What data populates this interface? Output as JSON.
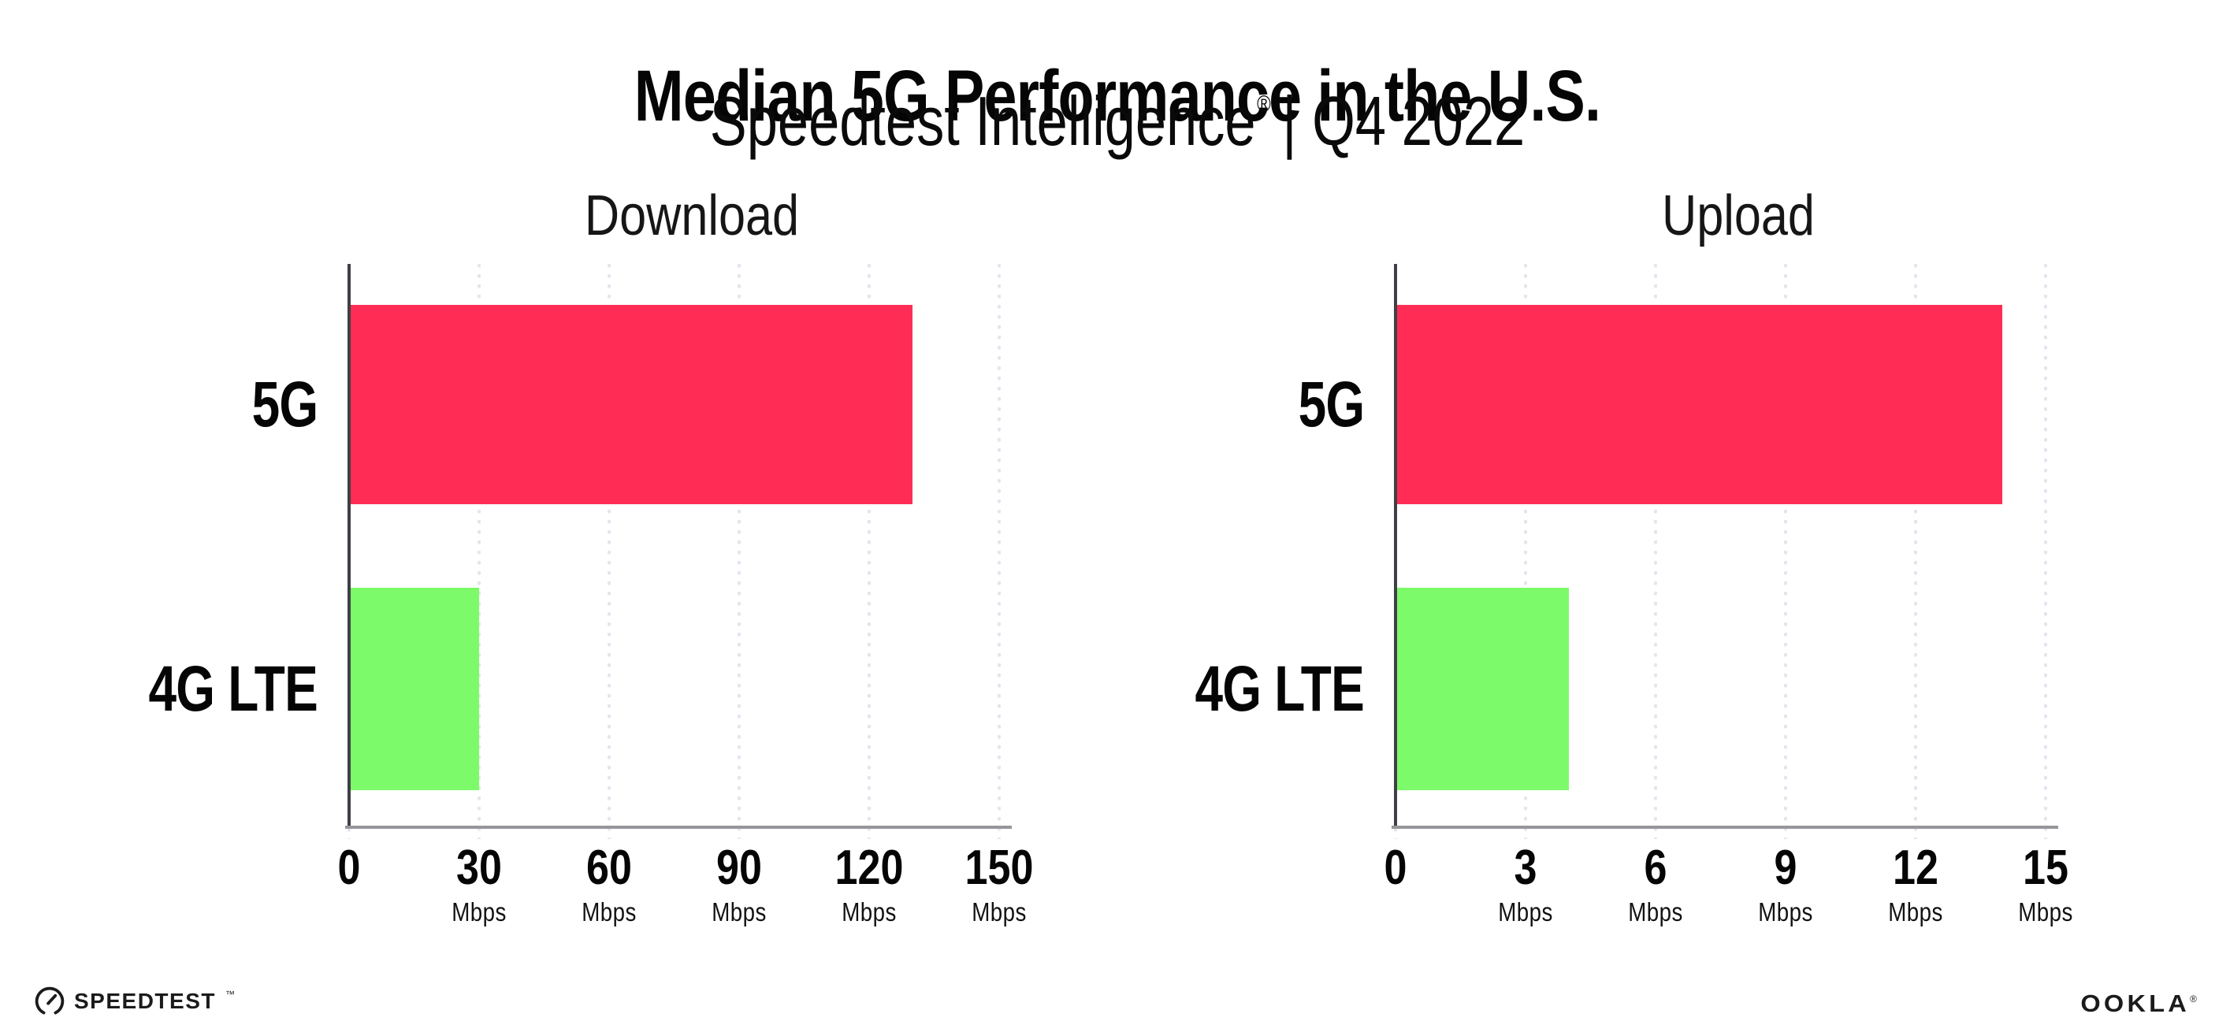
{
  "header": {
    "title": "Median 5G Performance in the U.S.",
    "subtitle_brand": "Speedtest Intelligence",
    "subtitle_reg": "®",
    "subtitle_rest": "| Q4 2022"
  },
  "colors": {
    "bar_5g": "#FF2D55",
    "bar_4g": "#7DFA69",
    "gridline": "#E5E4EF",
    "y_axis": "#3F3F46",
    "x_axis": "#96969B",
    "text": "#050505",
    "background": "#FFFFFF"
  },
  "chart_data": [
    {
      "type": "bar",
      "orientation": "horizontal",
      "title": "Download",
      "categories": [
        "5G",
        "4G LTE"
      ],
      "values": [
        130,
        30
      ],
      "unit": "Mbps",
      "xlim": [
        0,
        150
      ],
      "tick_step": 30,
      "grid": "dotted-vertical",
      "legend": "none",
      "bar_colors": [
        "#FF2D55",
        "#7DFA69"
      ],
      "ticks": [
        {
          "label": "0",
          "unit": ""
        },
        {
          "label": "30",
          "unit": "Mbps"
        },
        {
          "label": "60",
          "unit": "Mbps"
        },
        {
          "label": "90",
          "unit": "Mbps"
        },
        {
          "label": "120",
          "unit": "Mbps"
        },
        {
          "label": "150",
          "unit": "Mbps"
        }
      ]
    },
    {
      "type": "bar",
      "orientation": "horizontal",
      "title": "Upload",
      "categories": [
        "5G",
        "4G LTE"
      ],
      "values": [
        14,
        4
      ],
      "unit": "Mbps",
      "xlim": [
        0,
        15
      ],
      "tick_step": 3,
      "grid": "dotted-vertical",
      "legend": "none",
      "bar_colors": [
        "#FF2D55",
        "#7DFA69"
      ],
      "ticks": [
        {
          "label": "0",
          "unit": ""
        },
        {
          "label": "3",
          "unit": "Mbps"
        },
        {
          "label": "6",
          "unit": "Mbps"
        },
        {
          "label": "9",
          "unit": "Mbps"
        },
        {
          "label": "12",
          "unit": "Mbps"
        },
        {
          "label": "15",
          "unit": "Mbps"
        }
      ]
    }
  ],
  "footer": {
    "speedtest_label": "SPEEDTEST",
    "speedtest_tm": "™",
    "ookla_label": "OOKLA",
    "ookla_reg": "®"
  }
}
